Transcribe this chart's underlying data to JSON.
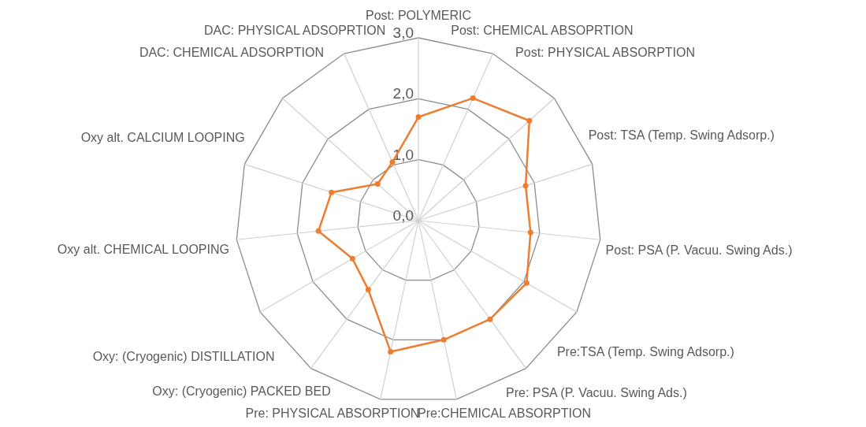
{
  "chart_data": {
    "type": "radar",
    "categories": [
      "Post: POLYMERIC",
      "Post: CHEMICAL ABSOPRTION",
      "Post: PHYSICAL ABSORPTION",
      "Post: TSA (Temp. Swing Adsorp.)",
      "Post: PSA (P. Vacuu. Swing Ads.)",
      "Pre:TSA (Temp. Swing Adsorp.)",
      "Pre: PSA (P. Vacuu. Swing Ads.)",
      "Pre:CHEMICAL ABSORPTION",
      "Pre: PHYSICAL ABSORPTION",
      "Oxy: (Cryogenic) PACKED BED",
      "Oxy: (Cryogenic) DISTILLATION",
      "Oxy alt. CHEMICAL LOOPING",
      "Oxy alt. CALCIUM LOOPING",
      "DAC: CHEMICAL ADSORPTION",
      "DAC: PHYSICAL ADSOPRTION"
    ],
    "series": [
      {
        "color": "#ed7d31",
        "values": [
          1.7,
          2.2,
          2.45,
          1.85,
          1.85,
          2.05,
          2.0,
          2.0,
          2.2,
          1.4,
          1.25,
          1.65,
          1.5,
          0.9,
          1.05
        ]
      }
    ],
    "ylim": [
      0,
      3
    ],
    "yticks": [
      {
        "value": 0,
        "label": "0,0"
      },
      {
        "value": 1,
        "label": "1,0"
      },
      {
        "value": 2,
        "label": "2,0"
      },
      {
        "value": 3,
        "label": "3,0"
      }
    ],
    "marker": "circle"
  }
}
